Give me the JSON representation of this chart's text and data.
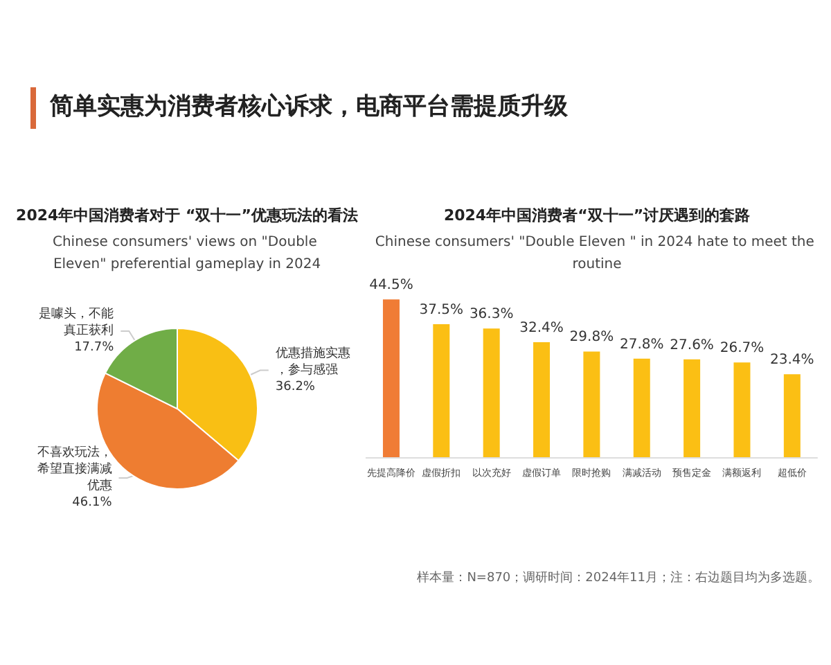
{
  "chart_data": [
    {
      "type": "other",
      "title": "简单实惠为消费者核心诉求，电商平台需提质升级",
      "color": "#d9693a"
    },
    {
      "type": "pie",
      "title": "2024年中国消费者对于 “双十一”优惠玩法的看法",
      "subtitle": "Chinese consumers' views on \"Double Eleven\" preferential gameplay in 2024",
      "categories": [
        "优惠措施实惠，参与感强",
        "不喜欢玩法，希望直接满减优惠",
        "是噱头，不能真正获利"
      ],
      "values": [
        36.2,
        46.1,
        17.7
      ],
      "value_labels": [
        "36.2%",
        "46.1%",
        "17.7%"
      ],
      "colors": [
        "#f9bf14",
        "#ee7d31",
        "#70ad47"
      ],
      "legend": false
    },
    {
      "type": "bar",
      "title": "2024年中国消费者“双十一”讨厌遇到的套路",
      "subtitle": "Chinese consumers' \"Double Eleven \" in 2024 hate to meet the routine",
      "categories": [
        "先提高降价",
        "虚假折扣",
        "以次充好",
        "虚假订单",
        "限时抢购",
        "满减活动",
        "预售定金",
        "满额返利",
        "超低价"
      ],
      "values": [
        44.5,
        37.5,
        36.3,
        32.4,
        29.8,
        27.8,
        27.6,
        26.7,
        23.4
      ],
      "value_labels": [
        "44.5%",
        "37.5%",
        "36.3%",
        "32.4%",
        "29.8%",
        "27.8%",
        "27.6%",
        "26.7%",
        "23.4%"
      ],
      "colors": [
        "#f07c35",
        "#fbbf14",
        "#fbbf14",
        "#fbbf14",
        "#fbbf14",
        "#fbbf14",
        "#fbbf14",
        "#fbbf14",
        "#fbbf14"
      ],
      "legend": false,
      "annotations": [
        "样本量：N=870；调研时间：2024年11月；注：右边题目均为多选题。"
      ]
    }
  ]
}
